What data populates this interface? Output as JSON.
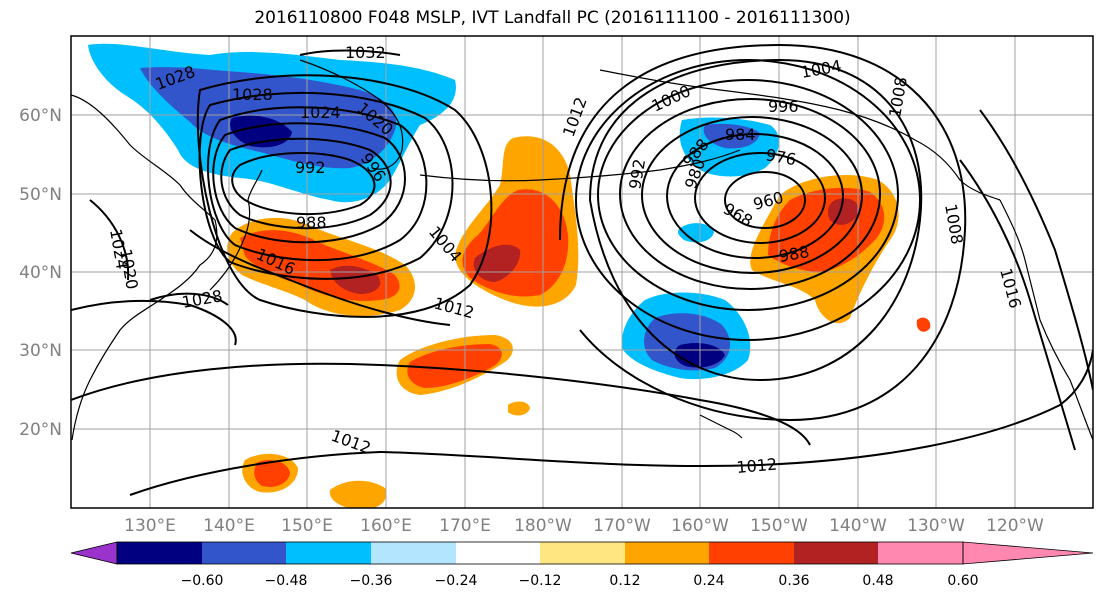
{
  "title": "2016110800 F048 MSLP, IVT Landfall PC (2016111100 - 2016111300)",
  "map": {
    "lat_labels": [
      "60°N",
      "50°N",
      "40°N",
      "30°N",
      "20°N"
    ],
    "lon_labels": [
      "130°E",
      "140°E",
      "150°E",
      "160°E",
      "170°E",
      "180°W",
      "170°W",
      "160°W",
      "150°W",
      "140°W",
      "130°W",
      "120°W"
    ],
    "contour_labels": [
      "1032",
      "1028",
      "1028",
      "1024",
      "1024",
      "1020",
      "992",
      "988",
      "1016",
      "1012",
      "1004",
      "996",
      "1012",
      "1008",
      "1004",
      "1000",
      "996",
      "992",
      "988",
      "984",
      "980",
      "976",
      "968",
      "960",
      "988",
      "1012",
      "1008",
      "1016",
      "1020",
      "1028",
      "1012"
    ]
  },
  "colorbar": {
    "ticks": [
      "−0.60",
      "−0.48",
      "−0.36",
      "−0.24",
      "−0.12",
      "0.12",
      "0.24",
      "0.36",
      "0.48",
      "0.60"
    ],
    "colors": [
      "#9933cc",
      "#000080",
      "#3355cc",
      "#00bfff",
      "#b3e5ff",
      "#ffffff",
      "#ffe680",
      "#ffa500",
      "#ff4000",
      "#b22222",
      "#ff88b0"
    ]
  },
  "colors": {
    "ivt_positive_low": "#ffa500",
    "ivt_positive_mid": "#ff4000",
    "ivt_positive_high": "#b22222",
    "ivt_negative_low": "#00bfff",
    "ivt_negative_mid": "#3355cc",
    "ivt_negative_high": "#000080",
    "contour": "#000000",
    "grid": "#a0a0a0"
  }
}
